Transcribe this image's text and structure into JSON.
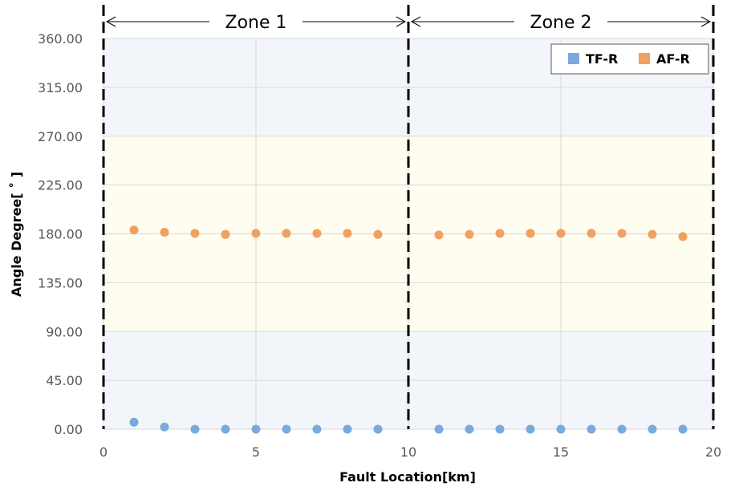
{
  "chart_data": {
    "type": "scatter",
    "xlabel": "Fault Location[km]",
    "ylabel": "Angle Degree[ ˚ ]",
    "xlim": [
      0,
      20
    ],
    "ylim": [
      0,
      360
    ],
    "x_ticks": [
      "0",
      "5",
      "10",
      "15",
      "20"
    ],
    "y_ticks": [
      "0.00",
      "45.00",
      "90.00",
      "135.00",
      "180.00",
      "225.00",
      "270.00",
      "315.00",
      "360.00"
    ],
    "grid": true,
    "legend_position": "top-right",
    "bands": [
      {
        "from": 0,
        "to": 90,
        "color": "#f2f5fa"
      },
      {
        "from": 90,
        "to": 270,
        "color": "#fffcf0"
      },
      {
        "from": 270,
        "to": 360,
        "color": "#f2f5fa"
      }
    ],
    "zones": [
      {
        "label": "Zone 1",
        "from": 0,
        "to": 10
      },
      {
        "label": "Zone 2",
        "from": 10,
        "to": 20
      }
    ],
    "series": [
      {
        "name": "TF-R",
        "color": "#7aaadc",
        "x": [
          1,
          2,
          3,
          4,
          5,
          6,
          7,
          8,
          9,
          11,
          12,
          13,
          14,
          15,
          16,
          17,
          18,
          19
        ],
        "y": [
          6.5,
          2,
          0,
          0,
          0,
          0,
          0,
          0,
          0,
          0,
          0,
          0,
          0,
          0,
          0,
          0,
          0,
          0
        ]
      },
      {
        "name": "AF-R",
        "color": "#f0a060",
        "x": [
          1,
          2,
          3,
          4,
          5,
          6,
          7,
          8,
          9,
          11,
          12,
          13,
          14,
          15,
          16,
          17,
          18,
          19
        ],
        "y": [
          183.5,
          181.5,
          180.5,
          179.5,
          180.5,
          180.5,
          180.5,
          180.5,
          179.5,
          179,
          179.5,
          180.5,
          180.5,
          180.5,
          180.5,
          180.5,
          179.5,
          177.5
        ]
      }
    ]
  }
}
